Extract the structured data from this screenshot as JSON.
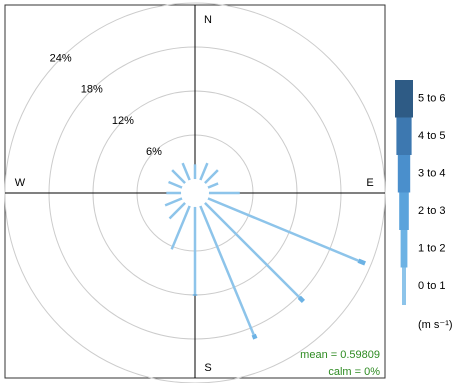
{
  "chart_data": {
    "type": "windrose",
    "x": [
      0,
      22.5,
      45,
      67.5,
      90,
      112.5,
      135,
      157.5,
      180,
      202.5,
      225,
      247.5,
      270,
      292.5,
      315,
      337.5
    ],
    "series": [
      {
        "name": "0 to 1",
        "color": "#8dc4ea",
        "values": [
          2,
          2.5,
          2.5,
          1.5,
          4.2,
          22.2,
          18.2,
          19,
          11.9,
          6.4,
          3,
          2.5,
          2,
          2,
          2.5,
          2.5
        ]
      },
      {
        "name": "1 to 2",
        "color": "#6cb2e4",
        "values": [
          0,
          0,
          0,
          0,
          0,
          1,
          0.8,
          0.6,
          0.2,
          0,
          0,
          0,
          0,
          0,
          0,
          0
        ]
      },
      {
        "name": "2 to 3",
        "color": "#5aa3dc",
        "values": [
          0,
          0,
          0,
          0,
          0,
          0,
          0,
          0,
          0,
          0,
          0,
          0,
          0,
          0,
          0,
          0
        ]
      },
      {
        "name": "3 to 4",
        "color": "#4a8fcc",
        "values": [
          0,
          0,
          0,
          0,
          0,
          0,
          0,
          0,
          0,
          0,
          0,
          0,
          0,
          0,
          0,
          0
        ]
      },
      {
        "name": "4 to 5",
        "color": "#3d78b0",
        "values": [
          0,
          0,
          0,
          0,
          0,
          0,
          0,
          0,
          0,
          0,
          0,
          0,
          0,
          0,
          0,
          0
        ]
      },
      {
        "name": "5 to 6",
        "color": "#2e5b85",
        "values": [
          0,
          0,
          0,
          0,
          0,
          0,
          0,
          0,
          0,
          0,
          0,
          0,
          0,
          0,
          0,
          0
        ]
      }
    ],
    "rlim": [
      0,
      24
    ],
    "rticks": [
      {
        "value": 6,
        "label": "6%"
      },
      {
        "value": 12,
        "label": "12%"
      },
      {
        "value": 18,
        "label": "18%"
      },
      {
        "value": 24,
        "label": "24%"
      }
    ],
    "compass": {
      "N": "N",
      "E": "E",
      "S": "S",
      "W": "W"
    },
    "legend_title": "(m s⁻¹)",
    "annotations": [
      "mean = 0.59809",
      "calm = 0%"
    ]
  }
}
